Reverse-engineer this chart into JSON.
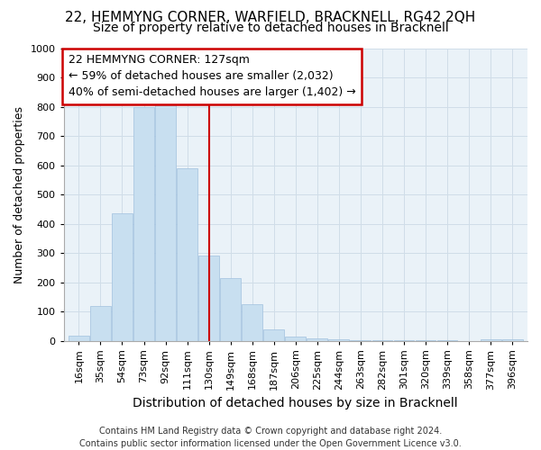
{
  "title": "22, HEMMYNG CORNER, WARFIELD, BRACKNELL, RG42 2QH",
  "subtitle": "Size of property relative to detached houses in Bracknell",
  "xlabel": "Distribution of detached houses by size in Bracknell",
  "ylabel": "Number of detached properties",
  "bar_labels": [
    "16sqm",
    "35sqm",
    "54sqm",
    "73sqm",
    "92sqm",
    "111sqm",
    "130sqm",
    "149sqm",
    "168sqm",
    "187sqm",
    "206sqm",
    "225sqm",
    "244sqm",
    "263sqm",
    "282sqm",
    "301sqm",
    "320sqm",
    "339sqm",
    "358sqm",
    "377sqm",
    "396sqm"
  ],
  "bar_values": [
    18,
    120,
    435,
    800,
    810,
    590,
    290,
    213,
    125,
    40,
    15,
    8,
    5,
    3,
    2,
    1,
    1,
    1,
    0,
    5,
    5
  ],
  "bar_color": "#c8dff0",
  "bar_edge_color": "#a0c0de",
  "vline_color": "#cc0000",
  "annotation_title": "22 HEMMYNG CORNER: 127sqm",
  "annotation_line1": "← 59% of detached houses are smaller (2,032)",
  "annotation_line2": "40% of semi-detached houses are larger (1,402) →",
  "annotation_box_color": "#ffffff",
  "annotation_box_edge": "#cc0000",
  "footer1": "Contains HM Land Registry data © Crown copyright and database right 2024.",
  "footer2": "Contains public sector information licensed under the Open Government Licence v3.0.",
  "ylim": [
    0,
    1000
  ],
  "yticks": [
    0,
    100,
    200,
    300,
    400,
    500,
    600,
    700,
    800,
    900,
    1000
  ],
  "title_fontsize": 11,
  "subtitle_fontsize": 10,
  "xlabel_fontsize": 10,
  "ylabel_fontsize": 9,
  "tick_fontsize": 8,
  "footer_fontsize": 7,
  "annotation_fontsize": 9,
  "grid_color": "#d0dde8",
  "bg_color": "#eaf2f8"
}
